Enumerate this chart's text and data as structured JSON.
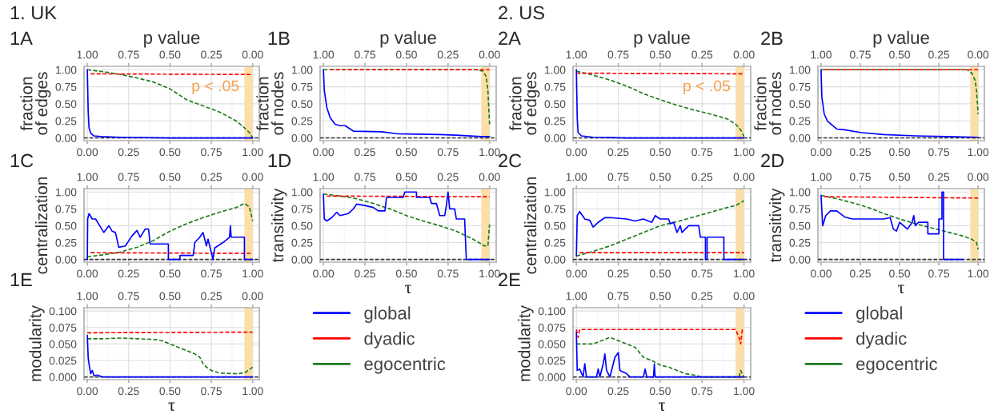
{
  "chart_data": [
    {
      "type": "line",
      "title": "1A",
      "annotations": [
        "1. UK"
      ],
      "ylabel": "fraction\nof edges",
      "x2label": "p value",
      "xlim": [
        -0.02,
        1.04
      ],
      "x2lim": [
        1.02,
        -0.04
      ],
      "ylim": [
        -0.04,
        1.05
      ],
      "xticks": [
        {
          "value": 0,
          "label": "0.00"
        },
        {
          "value": 0.25,
          "label": "0.25"
        },
        {
          "value": 0.5,
          "label": "0.50"
        },
        {
          "value": 0.75,
          "label": "0.75"
        },
        {
          "value": 1,
          "label": "1.00"
        }
      ],
      "x2ticks": [
        {
          "value": 1,
          "label": "1.00"
        },
        {
          "value": 0.75,
          "label": "0.75"
        },
        {
          "value": 0.5,
          "label": "0.50"
        },
        {
          "value": 0.25,
          "label": "0.25"
        },
        {
          "value": 0,
          "label": "0.00"
        }
      ],
      "yticks": [
        {
          "value": 0,
          "label": "0.00"
        },
        {
          "value": 0.25,
          "label": "0.25"
        },
        {
          "value": 0.5,
          "label": "0.50"
        },
        {
          "value": 0.75,
          "label": "0.75"
        },
        {
          "value": 1,
          "label": "1.00"
        }
      ],
      "grid": true,
      "bands": [
        {
          "axis": "x",
          "from": 0.95,
          "to": 1.0,
          "label": "p < .05",
          "color": "#fbdfa8"
        }
      ],
      "ref_lines": [
        {
          "axis": "y",
          "value": 0,
          "color": "#333333",
          "line_style": "dashed"
        }
      ],
      "series": [
        {
          "color": "#0000ff",
          "line_style": "solid",
          "x": [
            0,
            0.005,
            0.01,
            0.02,
            0.04,
            0.08,
            0.2,
            0.5,
            1.0
          ],
          "values": [
            1.0,
            0.4,
            0.15,
            0.07,
            0.03,
            0.02,
            0.01,
            0.0,
            0.0
          ]
        },
        {
          "color": "#ff0000",
          "line_style": "dashed",
          "x": [
            0.02,
            1.0
          ],
          "values": [
            0.94,
            0.93
          ]
        },
        {
          "color": "#1e7b1e",
          "line_style": "dashed",
          "x": [
            0,
            0.1,
            0.2,
            0.3,
            0.4,
            0.5,
            0.55,
            0.6,
            0.7,
            0.8,
            0.9,
            0.95,
            0.98,
            1.0
          ],
          "values": [
            1.0,
            0.97,
            0.93,
            0.88,
            0.82,
            0.72,
            0.64,
            0.56,
            0.47,
            0.38,
            0.25,
            0.15,
            0.08,
            0.0
          ]
        }
      ]
    },
    {
      "type": "line",
      "title": "1B",
      "ylabel": "fraction\nof nodes",
      "x2label": "p value",
      "xlim": [
        -0.02,
        1.04
      ],
      "x2lim": [
        1.02,
        -0.04
      ],
      "ylim": [
        -0.04,
        1.05
      ],
      "xticks": [
        {
          "value": 0,
          "label": "0.00"
        },
        {
          "value": 0.25,
          "label": "0.25"
        },
        {
          "value": 0.5,
          "label": "0.50"
        },
        {
          "value": 0.75,
          "label": "0.75"
        },
        {
          "value": 1,
          "label": "1.00"
        }
      ],
      "x2ticks": [
        {
          "value": 1,
          "label": "1.00"
        },
        {
          "value": 0.75,
          "label": "0.75"
        },
        {
          "value": 0.5,
          "label": "0.50"
        },
        {
          "value": 0.25,
          "label": "0.25"
        },
        {
          "value": 0,
          "label": "0.00"
        }
      ],
      "yticks": [
        {
          "value": 0,
          "label": "0.00"
        },
        {
          "value": 0.25,
          "label": "0.25"
        },
        {
          "value": 0.5,
          "label": "0.50"
        },
        {
          "value": 0.75,
          "label": "0.75"
        },
        {
          "value": 1,
          "label": "1.00"
        }
      ],
      "grid": true,
      "bands": [
        {
          "axis": "x",
          "from": 0.95,
          "to": 1.0,
          "color": "#fbdfa8"
        }
      ],
      "ref_lines": [
        {
          "axis": "y",
          "value": 0,
          "color": "#333333",
          "line_style": "dashed"
        }
      ],
      "series": [
        {
          "color": "#0000ff",
          "line_style": "solid",
          "x": [
            0,
            0.005,
            0.02,
            0.04,
            0.07,
            0.1,
            0.13,
            0.18,
            0.35,
            0.45,
            0.7,
            0.8,
            0.95,
            1.0
          ],
          "values": [
            1.0,
            0.7,
            0.45,
            0.3,
            0.2,
            0.18,
            0.18,
            0.1,
            0.09,
            0.06,
            0.05,
            0.04,
            0.02,
            0.02
          ]
        },
        {
          "color": "#ff0000",
          "line_style": "dashed",
          "x": [
            0.04,
            1.0
          ],
          "values": [
            1.0,
            1.0
          ]
        },
        {
          "color": "#1e7b1e",
          "line_style": "dashed",
          "x": [
            0,
            0.92,
            0.96,
            0.98,
            0.99,
            1.0
          ],
          "values": [
            1.0,
            1.0,
            0.98,
            0.9,
            0.7,
            0.2
          ]
        }
      ]
    },
    {
      "type": "line",
      "title": "1C",
      "ylabel": "centralization",
      "xlim": [
        -0.02,
        1.04
      ],
      "x2lim": [
        1.02,
        -0.04
      ],
      "ylim": [
        -0.04,
        1.05
      ],
      "xticks": [
        {
          "value": 0,
          "label": "0.00"
        },
        {
          "value": 0.25,
          "label": "0.25"
        },
        {
          "value": 0.5,
          "label": "0.50"
        },
        {
          "value": 0.75,
          "label": "0.75"
        },
        {
          "value": 1,
          "label": "1.00"
        }
      ],
      "x2ticks": [
        {
          "value": 1,
          "label": "1.00"
        },
        {
          "value": 0.75,
          "label": "0.75"
        },
        {
          "value": 0.5,
          "label": "0.50"
        },
        {
          "value": 0.25,
          "label": "0.25"
        },
        {
          "value": 0,
          "label": "0.00"
        }
      ],
      "yticks": [
        {
          "value": 0,
          "label": "0.00"
        },
        {
          "value": 0.25,
          "label": "0.25"
        },
        {
          "value": 0.5,
          "label": "0.50"
        },
        {
          "value": 0.75,
          "label": "0.75"
        },
        {
          "value": 1,
          "label": "1.00"
        }
      ],
      "grid": true,
      "bands": [
        {
          "axis": "x",
          "from": 0.95,
          "to": 1.0,
          "color": "#fbdfa8"
        }
      ],
      "ref_lines": [
        {
          "axis": "y",
          "value": 0,
          "color": "#333333",
          "line_style": "dashed"
        }
      ],
      "series": [
        {
          "color": "#0000ff",
          "line_style": "solid",
          "x": [
            0,
            0.002,
            0.01,
            0.03,
            0.05,
            0.08,
            0.1,
            0.13,
            0.15,
            0.17,
            0.19,
            0.23,
            0.27,
            0.3,
            0.32,
            0.35,
            0.37,
            0.38,
            0.49,
            0.49,
            0.56,
            0.56,
            0.64,
            0.65,
            0.68,
            0.7,
            0.72,
            0.73,
            0.76,
            0.77,
            0.82,
            0.86,
            0.865,
            0.87,
            0.95,
            0.95,
            1.0
          ],
          "values": [
            0.0,
            0.6,
            0.68,
            0.6,
            0.6,
            0.48,
            0.4,
            0.5,
            0.42,
            0.4,
            0.18,
            0.2,
            0.35,
            0.43,
            0.33,
            0.45,
            0.45,
            0.23,
            0.23,
            0.0,
            0.0,
            0.06,
            0.06,
            0.25,
            0.33,
            0.4,
            0.2,
            0.3,
            0.0,
            0.17,
            0.25,
            0.33,
            0.5,
            0.33,
            0.33,
            0.0,
            0.0
          ]
        },
        {
          "color": "#ff0000",
          "line_style": "dashed",
          "x": [
            0.02,
            1.0
          ],
          "values": [
            0.1,
            0.09
          ]
        },
        {
          "color": "#1e7b1e",
          "line_style": "dashed",
          "x": [
            0,
            0.1,
            0.2,
            0.3,
            0.4,
            0.5,
            0.6,
            0.7,
            0.8,
            0.9,
            0.95,
            0.98,
            1.0
          ],
          "values": [
            0.04,
            0.07,
            0.11,
            0.18,
            0.28,
            0.42,
            0.53,
            0.62,
            0.7,
            0.77,
            0.83,
            0.78,
            0.57
          ]
        }
      ]
    },
    {
      "type": "line",
      "title": "1D",
      "ylabel": "transitivity",
      "xlabel": "τ",
      "xlim": [
        -0.02,
        1.04
      ],
      "x2lim": [
        1.02,
        -0.04
      ],
      "ylim": [
        -0.04,
        1.05
      ],
      "xticks": [
        {
          "value": 0,
          "label": "0.00"
        },
        {
          "value": 0.25,
          "label": "0.25"
        },
        {
          "value": 0.5,
          "label": "0.50"
        },
        {
          "value": 0.75,
          "label": "0.75"
        },
        {
          "value": 1,
          "label": "1.00"
        }
      ],
      "x2ticks": [
        {
          "value": 1,
          "label": "1.00"
        },
        {
          "value": 0.75,
          "label": "0.75"
        },
        {
          "value": 0.5,
          "label": "0.50"
        },
        {
          "value": 0.25,
          "label": "0.25"
        },
        {
          "value": 0,
          "label": "0.00"
        }
      ],
      "yticks": [
        {
          "value": 0,
          "label": "0.00"
        },
        {
          "value": 0.25,
          "label": "0.25"
        },
        {
          "value": 0.5,
          "label": "0.50"
        },
        {
          "value": 0.75,
          "label": "0.75"
        },
        {
          "value": 1,
          "label": "1.00"
        }
      ],
      "grid": true,
      "bands": [
        {
          "axis": "x",
          "from": 0.95,
          "to": 1.0,
          "color": "#fbdfa8"
        }
      ],
      "ref_lines": [
        {
          "axis": "y",
          "value": 0,
          "color": "#333333",
          "line_style": "dashed"
        }
      ],
      "series": [
        {
          "color": "#0000ff",
          "line_style": "solid",
          "x": [
            0,
            0.005,
            0.02,
            0.05,
            0.08,
            0.1,
            0.15,
            0.18,
            0.2,
            0.25,
            0.3,
            0.33,
            0.37,
            0.38,
            0.48,
            0.49,
            0.56,
            0.56,
            0.64,
            0.65,
            0.68,
            0.7,
            0.73,
            0.74,
            0.75,
            0.76,
            0.79,
            0.8,
            0.85,
            0.86,
            1.0
          ],
          "values": [
            0.97,
            0.6,
            0.57,
            0.62,
            0.7,
            0.65,
            0.68,
            0.75,
            0.82,
            0.8,
            0.77,
            0.72,
            0.72,
            0.92,
            0.92,
            1.0,
            1.0,
            0.92,
            0.92,
            0.83,
            0.83,
            0.65,
            0.65,
            0.8,
            1.0,
            0.75,
            0.75,
            0.6,
            0.6,
            0.0,
            0.0
          ]
        },
        {
          "color": "#ff0000",
          "line_style": "dashed",
          "x": [
            0.02,
            1.0
          ],
          "values": [
            0.94,
            0.93
          ]
        },
        {
          "color": "#1e7b1e",
          "line_style": "dashed",
          "x": [
            0,
            0.1,
            0.2,
            0.3,
            0.4,
            0.5,
            0.6,
            0.7,
            0.8,
            0.9,
            0.97,
            0.99,
            1.0
          ],
          "values": [
            0.97,
            0.94,
            0.9,
            0.83,
            0.75,
            0.65,
            0.57,
            0.5,
            0.42,
            0.3,
            0.2,
            0.2,
            0.52
          ]
        }
      ]
    },
    {
      "type": "line",
      "title": "1E",
      "ylabel": "modularity",
      "xlabel": "τ",
      "xlim": [
        -0.02,
        1.04
      ],
      "x2lim": [
        1.02,
        -0.04
      ],
      "ylim": [
        -0.004,
        0.105
      ],
      "legend": "right",
      "xticks": [
        {
          "value": 0,
          "label": "0.00"
        },
        {
          "value": 0.25,
          "label": "0.25"
        },
        {
          "value": 0.5,
          "label": "0.50"
        },
        {
          "value": 0.75,
          "label": "0.75"
        },
        {
          "value": 1,
          "label": "1.00"
        }
      ],
      "x2ticks": [
        {
          "value": 1,
          "label": "1.00"
        },
        {
          "value": 0.75,
          "label": "0.75"
        },
        {
          "value": 0.5,
          "label": "0.50"
        },
        {
          "value": 0.25,
          "label": "0.25"
        },
        {
          "value": 0,
          "label": "0.00"
        }
      ],
      "yticks": [
        {
          "value": 0,
          "label": "0.000"
        },
        {
          "value": 0.025,
          "label": "0.025"
        },
        {
          "value": 0.05,
          "label": "0.050"
        },
        {
          "value": 0.075,
          "label": "0.075"
        },
        {
          "value": 0.1,
          "label": "0.100"
        }
      ],
      "grid": true,
      "bands": [
        {
          "axis": "x",
          "from": 0.95,
          "to": 1.0,
          "color": "#fbdfa8"
        }
      ],
      "ref_lines": [
        {
          "axis": "y",
          "value": 0,
          "color": "#333333",
          "line_style": "dashed"
        }
      ],
      "series": [
        {
          "name": "global",
          "color": "#0000ff",
          "line_style": "solid",
          "x": [
            0,
            0.005,
            0.01,
            0.02,
            0.03,
            0.04,
            0.06,
            0.08,
            0.1,
            1.0
          ],
          "values": [
            0.063,
            0.03,
            0.02,
            0.005,
            0.01,
            0.002,
            0.003,
            0.001,
            0.0,
            0.0
          ]
        },
        {
          "name": "dyadic",
          "color": "#ff0000",
          "line_style": "dashed",
          "x": [
            0,
            1.0
          ],
          "values": [
            0.067,
            0.068
          ]
        },
        {
          "name": "egocentric",
          "color": "#1e7b1e",
          "line_style": "dashed",
          "x": [
            0,
            0.1,
            0.2,
            0.3,
            0.4,
            0.45,
            0.5,
            0.55,
            0.6,
            0.65,
            0.68,
            0.7,
            0.72,
            0.75,
            0.8,
            0.9,
            0.95,
            1.0
          ],
          "values": [
            0.058,
            0.058,
            0.059,
            0.058,
            0.057,
            0.055,
            0.05,
            0.045,
            0.04,
            0.035,
            0.03,
            0.02,
            0.015,
            0.01,
            0.006,
            0.005,
            0.006,
            0.015
          ]
        }
      ]
    },
    {
      "type": "line",
      "title": "2A",
      "annotations": [
        "2. US"
      ],
      "ylabel": "fraction\nof edges",
      "x2label": "p value",
      "xlim": [
        -0.02,
        1.04
      ],
      "x2lim": [
        1.02,
        -0.04
      ],
      "ylim": [
        -0.04,
        1.05
      ],
      "xticks": [
        {
          "value": 0,
          "label": "0.00"
        },
        {
          "value": 0.25,
          "label": "0.25"
        },
        {
          "value": 0.5,
          "label": "0.50"
        },
        {
          "value": 0.75,
          "label": "0.75"
        },
        {
          "value": 1,
          "label": "1.00"
        }
      ],
      "x2ticks": [
        {
          "value": 1,
          "label": "1.00"
        },
        {
          "value": 0.75,
          "label": "0.75"
        },
        {
          "value": 0.5,
          "label": "0.50"
        },
        {
          "value": 0.25,
          "label": "0.25"
        },
        {
          "value": 0,
          "label": "0.00"
        }
      ],
      "yticks": [
        {
          "value": 0,
          "label": "0.00"
        },
        {
          "value": 0.25,
          "label": "0.25"
        },
        {
          "value": 0.5,
          "label": "0.50"
        },
        {
          "value": 0.75,
          "label": "0.75"
        },
        {
          "value": 1,
          "label": "1.00"
        }
      ],
      "grid": true,
      "bands": [
        {
          "axis": "x",
          "from": 0.95,
          "to": 1.0,
          "label": "p < .05",
          "color": "#fbdfa8"
        }
      ],
      "ref_lines": [
        {
          "axis": "y",
          "value": 0,
          "color": "#333333",
          "line_style": "dashed"
        }
      ],
      "series": [
        {
          "color": "#0000ff",
          "line_style": "solid",
          "x": [
            0,
            0.005,
            0.01,
            0.03,
            0.1,
            0.3,
            1.0
          ],
          "values": [
            1.0,
            0.3,
            0.08,
            0.03,
            0.01,
            0.0,
            0.0
          ]
        },
        {
          "color": "#ff0000",
          "line_style": "dashed",
          "x": [
            0,
            1.0
          ],
          "values": [
            0.95,
            0.94
          ]
        },
        {
          "color": "#1e7b1e",
          "line_style": "dashed",
          "x": [
            0,
            0.1,
            0.2,
            0.3,
            0.4,
            0.5,
            0.6,
            0.7,
            0.8,
            0.9,
            0.95,
            0.98,
            1.0
          ],
          "values": [
            0.98,
            0.92,
            0.85,
            0.76,
            0.65,
            0.56,
            0.48,
            0.41,
            0.35,
            0.28,
            0.2,
            0.12,
            0.02
          ]
        }
      ]
    },
    {
      "type": "line",
      "title": "2B",
      "ylabel": "fraction\nof nodes",
      "x2label": "p value",
      "xlim": [
        -0.02,
        1.04
      ],
      "x2lim": [
        1.02,
        -0.04
      ],
      "ylim": [
        -0.04,
        1.05
      ],
      "xticks": [
        {
          "value": 0,
          "label": "0.00"
        },
        {
          "value": 0.25,
          "label": "0.25"
        },
        {
          "value": 0.5,
          "label": "0.50"
        },
        {
          "value": 0.75,
          "label": "0.75"
        },
        {
          "value": 1,
          "label": "1.00"
        }
      ],
      "x2ticks": [
        {
          "value": 1,
          "label": "1.00"
        },
        {
          "value": 0.75,
          "label": "0.75"
        },
        {
          "value": 0.5,
          "label": "0.50"
        },
        {
          "value": 0.25,
          "label": "0.25"
        },
        {
          "value": 0,
          "label": "0.00"
        }
      ],
      "yticks": [
        {
          "value": 0,
          "label": "0.00"
        },
        {
          "value": 0.25,
          "label": "0.25"
        },
        {
          "value": 0.5,
          "label": "0.50"
        },
        {
          "value": 0.75,
          "label": "0.75"
        },
        {
          "value": 1,
          "label": "1.00"
        }
      ],
      "grid": true,
      "bands": [
        {
          "axis": "x",
          "from": 0.95,
          "to": 1.0,
          "color": "#fbdfa8"
        }
      ],
      "ref_lines": [
        {
          "axis": "y",
          "value": 0,
          "color": "#333333",
          "line_style": "dashed"
        }
      ],
      "series": [
        {
          "color": "#0000ff",
          "line_style": "solid",
          "x": [
            0,
            0.005,
            0.02,
            0.04,
            0.08,
            0.1,
            0.15,
            0.25,
            0.4,
            0.6,
            0.8,
            1.0
          ],
          "values": [
            1.0,
            0.6,
            0.35,
            0.25,
            0.17,
            0.13,
            0.12,
            0.08,
            0.05,
            0.03,
            0.02,
            0.01
          ]
        },
        {
          "color": "#ff0000",
          "line_style": "dashed",
          "x": [
            0.02,
            1.0
          ],
          "values": [
            1.0,
            1.0
          ]
        },
        {
          "color": "#1e7b1e",
          "line_style": "dashed",
          "x": [
            0,
            0.93,
            0.96,
            0.98,
            0.99,
            1.0
          ],
          "values": [
            1.0,
            1.0,
            0.95,
            0.85,
            0.7,
            0.35
          ]
        }
      ]
    },
    {
      "type": "line",
      "title": "2C",
      "ylabel": "centralization",
      "xlim": [
        -0.02,
        1.04
      ],
      "x2lim": [
        1.02,
        -0.04
      ],
      "ylim": [
        -0.04,
        1.05
      ],
      "xticks": [
        {
          "value": 0,
          "label": "0.00"
        },
        {
          "value": 0.25,
          "label": "0.25"
        },
        {
          "value": 0.5,
          "label": "0.50"
        },
        {
          "value": 0.75,
          "label": "0.75"
        },
        {
          "value": 1,
          "label": "1.00"
        }
      ],
      "x2ticks": [
        {
          "value": 1,
          "label": "1.00"
        },
        {
          "value": 0.75,
          "label": "0.75"
        },
        {
          "value": 0.5,
          "label": "0.50"
        },
        {
          "value": 0.25,
          "label": "0.25"
        },
        {
          "value": 0,
          "label": "0.00"
        }
      ],
      "yticks": [
        {
          "value": 0,
          "label": "0.00"
        },
        {
          "value": 0.25,
          "label": "0.25"
        },
        {
          "value": 0.5,
          "label": "0.50"
        },
        {
          "value": 0.75,
          "label": "0.75"
        },
        {
          "value": 1,
          "label": "1.00"
        }
      ],
      "grid": true,
      "bands": [
        {
          "axis": "x",
          "from": 0.95,
          "to": 1.0,
          "color": "#fbdfa8"
        }
      ],
      "ref_lines": [
        {
          "axis": "y",
          "value": 0,
          "color": "#333333",
          "line_style": "dashed"
        }
      ],
      "series": [
        {
          "color": "#0000ff",
          "line_style": "solid",
          "x": [
            0,
            0.005,
            0.02,
            0.05,
            0.08,
            0.1,
            0.13,
            0.17,
            0.2,
            0.3,
            0.35,
            0.4,
            0.45,
            0.47,
            0.5,
            0.55,
            0.56,
            0.58,
            0.6,
            0.62,
            0.63,
            0.67,
            0.73,
            0.74,
            0.77,
            0.77,
            0.78,
            0.78,
            0.88,
            0.88,
            1.0
          ],
          "values": [
            0.05,
            0.65,
            0.71,
            0.6,
            0.58,
            0.48,
            0.55,
            0.62,
            0.62,
            0.6,
            0.57,
            0.6,
            0.55,
            0.65,
            0.6,
            0.6,
            0.53,
            0.55,
            0.4,
            0.5,
            0.4,
            0.5,
            0.5,
            0.33,
            0.33,
            0.0,
            0.0,
            0.33,
            0.33,
            0.0,
            0.0
          ]
        },
        {
          "color": "#ff0000",
          "line_style": "dashed",
          "x": [
            0.02,
            1.0
          ],
          "values": [
            0.1,
            0.1
          ]
        },
        {
          "color": "#1e7b1e",
          "line_style": "dashed",
          "x": [
            0,
            0.1,
            0.2,
            0.3,
            0.4,
            0.5,
            0.6,
            0.7,
            0.8,
            0.9,
            0.95,
            1.0
          ],
          "values": [
            0.05,
            0.12,
            0.2,
            0.3,
            0.4,
            0.5,
            0.56,
            0.63,
            0.7,
            0.77,
            0.8,
            0.87
          ]
        }
      ]
    },
    {
      "type": "line",
      "title": "2D",
      "ylabel": "transitivity",
      "xlabel": "τ",
      "xlim": [
        -0.02,
        1.04
      ],
      "x2lim": [
        1.02,
        -0.04
      ],
      "ylim": [
        -0.04,
        1.05
      ],
      "xticks": [
        {
          "value": 0,
          "label": "0.00"
        },
        {
          "value": 0.25,
          "label": "0.25"
        },
        {
          "value": 0.5,
          "label": "0.50"
        },
        {
          "value": 0.75,
          "label": "0.75"
        },
        {
          "value": 1,
          "label": "1.00"
        }
      ],
      "x2ticks": [
        {
          "value": 1,
          "label": "1.00"
        },
        {
          "value": 0.75,
          "label": "0.75"
        },
        {
          "value": 0.5,
          "label": "0.50"
        },
        {
          "value": 0.25,
          "label": "0.25"
        },
        {
          "value": 0,
          "label": "0.00"
        }
      ],
      "yticks": [
        {
          "value": 0,
          "label": "0.00"
        },
        {
          "value": 0.25,
          "label": "0.25"
        },
        {
          "value": 0.5,
          "label": "0.50"
        },
        {
          "value": 0.75,
          "label": "0.75"
        },
        {
          "value": 1,
          "label": "1.00"
        }
      ],
      "grid": true,
      "bands": [
        {
          "axis": "x",
          "from": 0.95,
          "to": 1.0,
          "color": "#fbdfa8"
        }
      ],
      "ref_lines": [
        {
          "axis": "y",
          "value": 0,
          "color": "#333333",
          "line_style": "dashed"
        }
      ],
      "series": [
        {
          "color": "#0000ff",
          "line_style": "solid",
          "x": [
            0,
            0.01,
            0.03,
            0.06,
            0.1,
            0.15,
            0.2,
            0.3,
            0.4,
            0.44,
            0.46,
            0.48,
            0.5,
            0.55,
            0.58,
            0.59,
            0.6,
            0.62,
            0.68,
            0.68,
            0.75,
            0.75,
            0.77,
            0.77,
            0.78,
            0.78,
            0.9
          ],
          "values": [
            0.95,
            0.5,
            0.65,
            0.72,
            0.72,
            0.63,
            0.6,
            0.6,
            0.6,
            0.62,
            0.45,
            0.42,
            0.55,
            0.45,
            0.55,
            0.65,
            0.5,
            0.55,
            0.55,
            0.38,
            0.38,
            0.6,
            0.6,
            1.0,
            1.0,
            0.0,
            0.0
          ]
        },
        {
          "color": "#ff0000",
          "line_style": "dashed",
          "x": [
            0.02,
            1.0
          ],
          "values": [
            0.93,
            0.91
          ]
        },
        {
          "color": "#1e7b1e",
          "line_style": "dashed",
          "x": [
            0,
            0.1,
            0.2,
            0.3,
            0.4,
            0.5,
            0.6,
            0.7,
            0.8,
            0.9,
            0.96,
            0.99,
            1.0
          ],
          "values": [
            0.95,
            0.9,
            0.84,
            0.77,
            0.68,
            0.6,
            0.53,
            0.47,
            0.41,
            0.35,
            0.3,
            0.25,
            0.15
          ]
        }
      ]
    },
    {
      "type": "line",
      "title": "2E",
      "ylabel": "modularity",
      "xlabel": "τ",
      "xlim": [
        -0.02,
        1.04
      ],
      "x2lim": [
        1.02,
        -0.04
      ],
      "ylim": [
        -0.004,
        0.105
      ],
      "legend": "right",
      "xticks": [
        {
          "value": 0,
          "label": "0.00"
        },
        {
          "value": 0.25,
          "label": "0.25"
        },
        {
          "value": 0.5,
          "label": "0.50"
        },
        {
          "value": 0.75,
          "label": "0.75"
        },
        {
          "value": 1,
          "label": "1.00"
        }
      ],
      "x2ticks": [
        {
          "value": 1,
          "label": "1.00"
        },
        {
          "value": 0.75,
          "label": "0.75"
        },
        {
          "value": 0.5,
          "label": "0.50"
        },
        {
          "value": 0.25,
          "label": "0.25"
        },
        {
          "value": 0,
          "label": "0.00"
        }
      ],
      "yticks": [
        {
          "value": 0,
          "label": "0.000"
        },
        {
          "value": 0.025,
          "label": "0.025"
        },
        {
          "value": 0.05,
          "label": "0.050"
        },
        {
          "value": 0.075,
          "label": "0.075"
        },
        {
          "value": 0.1,
          "label": "0.100"
        }
      ],
      "grid": true,
      "bands": [
        {
          "axis": "x",
          "from": 0.95,
          "to": 1.0,
          "color": "#fbdfa8"
        }
      ],
      "ref_lines": [
        {
          "axis": "y",
          "value": 0,
          "color": "#333333",
          "line_style": "dashed"
        }
      ],
      "series": [
        {
          "name": "global",
          "color": "#0000ff",
          "line_style": "solid",
          "x": [
            0,
            0.005,
            0.02,
            0.04,
            0.05,
            0.06,
            0.12,
            0.13,
            0.14,
            0.16,
            0.17,
            0.18,
            0.2,
            0.23,
            0.25,
            0.26,
            0.3,
            0.32,
            0.4,
            0.41,
            0.42,
            0.46,
            0.465,
            0.47,
            1.0
          ],
          "values": [
            0.068,
            0.01,
            0.012,
            0.0,
            0.02,
            0.0,
            0.0,
            0.012,
            0.0,
            0.02,
            0.035,
            0.01,
            0.0,
            0.03,
            0.037,
            0.01,
            0.005,
            0.0,
            0.0,
            0.012,
            0.0,
            0.0,
            0.02,
            0.0,
            0.0
          ]
        },
        {
          "name": "dyadic",
          "color": "#ff0000",
          "line_style": "dashed",
          "x": [
            0,
            0.01,
            0.02,
            0.95,
            0.97,
            0.98,
            0.99,
            1.0
          ],
          "values": [
            0.072,
            0.06,
            0.072,
            0.072,
            0.06,
            0.05,
            0.072,
            0.072
          ]
        },
        {
          "name": "egocentric",
          "color": "#1e7b1e",
          "line_style": "dashed",
          "x": [
            0,
            0.1,
            0.15,
            0.2,
            0.25,
            0.3,
            0.35,
            0.4,
            0.45,
            0.5,
            0.55,
            0.6,
            0.65,
            0.7,
            0.75,
            0.9,
            0.97,
            0.98,
            1.0
          ],
          "values": [
            0.05,
            0.05,
            0.055,
            0.06,
            0.055,
            0.05,
            0.045,
            0.03,
            0.025,
            0.018,
            0.015,
            0.01,
            0.005,
            0.003,
            0.0,
            0.0,
            0.0,
            0.01,
            0.0
          ]
        }
      ]
    }
  ]
}
